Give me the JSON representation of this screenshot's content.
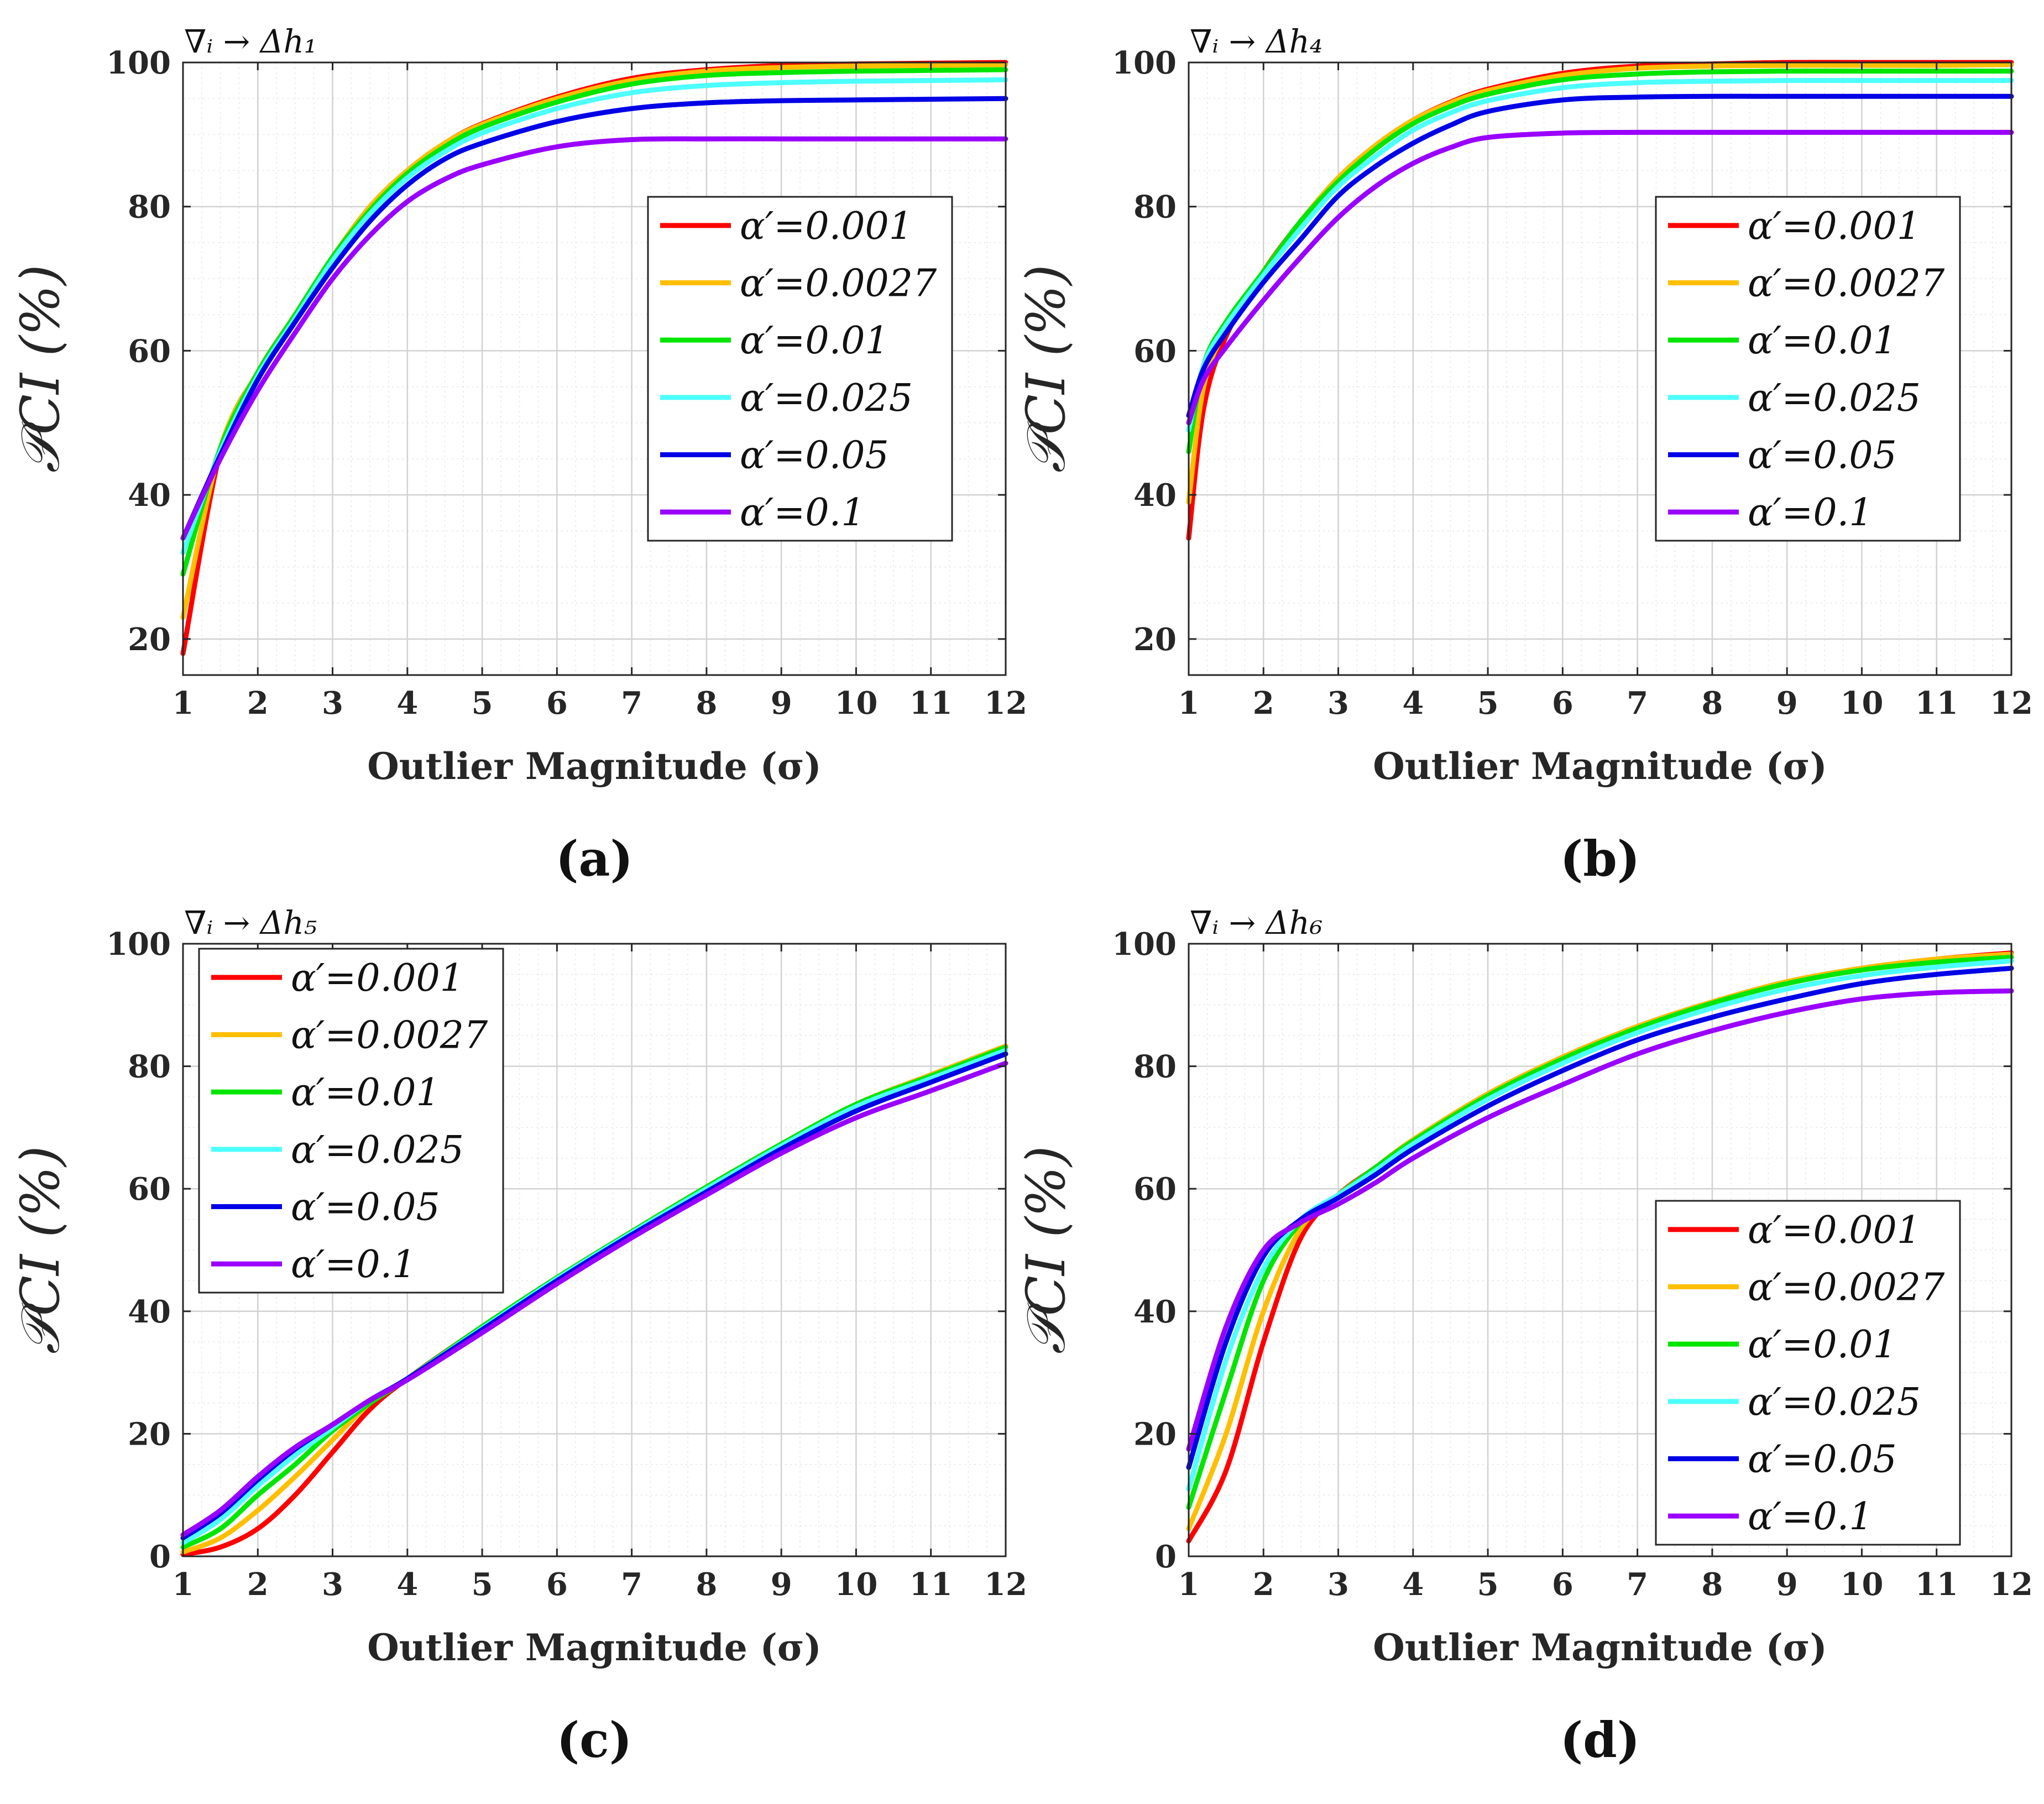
{
  "chart_data": [
    {
      "type": "line",
      "panel": "(a)",
      "title": "∇ᵢ → Δh₁",
      "xlabel": "Outlier Magnitude (σ)",
      "ylabel": "𝒫CI (%)",
      "xlim": [
        1,
        12
      ],
      "ylim": [
        15,
        100
      ],
      "xticks": [
        1,
        2,
        3,
        4,
        5,
        6,
        7,
        8,
        9,
        10,
        11,
        12
      ],
      "yticks": [
        20,
        40,
        60,
        80,
        100
      ],
      "legend_position": "center-right",
      "x": [
        1,
        1.5,
        2,
        2.5,
        3,
        3.5,
        4,
        4.5,
        5,
        6,
        7,
        8,
        9,
        10,
        11,
        12
      ],
      "series": [
        {
          "name": "α′=0.001",
          "color": "#ff0000",
          "values": [
            18,
            46,
            57,
            65,
            73,
            80,
            85,
            88.8,
            91.5,
            95.2,
            97.8,
            99.0,
            99.6,
            99.8,
            99.9,
            100
          ]
        },
        {
          "name": "α′=0.0027",
          "color": "#ffbf00",
          "values": [
            23,
            46.5,
            57,
            65,
            73,
            80,
            85,
            88.8,
            91.4,
            95.0,
            97.5,
            98.8,
            99.3,
            99.5,
            99.6,
            99.7
          ]
        },
        {
          "name": "α′=0.01",
          "color": "#00e600",
          "values": [
            29,
            46.5,
            57,
            65,
            73,
            79.5,
            84.6,
            88.3,
            91.0,
            94.5,
            97.0,
            98.2,
            98.6,
            98.8,
            98.9,
            99.0
          ]
        },
        {
          "name": "α′=0.025",
          "color": "#4dffff",
          "values": [
            32,
            46,
            56.5,
            64.5,
            72.5,
            79,
            84,
            87.6,
            90.2,
            93.6,
            95.8,
            96.8,
            97.2,
            97.4,
            97.5,
            97.6
          ]
        },
        {
          "name": "α′=0.05",
          "color": "#0000e6",
          "values": [
            34,
            45.5,
            56,
            64,
            71.5,
            78,
            83,
            86.6,
            88.8,
            91.8,
            93.6,
            94.4,
            94.7,
            94.8,
            94.9,
            95.0
          ]
        },
        {
          "name": "α′=0.1",
          "color": "#9900ff",
          "values": [
            34,
            45,
            54.5,
            62.5,
            70,
            76,
            80.7,
            83.8,
            85.8,
            88.3,
            89.3,
            89.4,
            89.4,
            89.4,
            89.4,
            89.4
          ]
        }
      ]
    },
    {
      "type": "line",
      "panel": "(b)",
      "title": "∇ᵢ → Δh₄",
      "xlabel": "Outlier Magnitude (σ)",
      "ylabel": "𝒫CI (%)",
      "xlim": [
        1,
        12
      ],
      "ylim": [
        15,
        100
      ],
      "xticks": [
        1,
        2,
        3,
        4,
        5,
        6,
        7,
        8,
        9,
        10,
        11,
        12
      ],
      "yticks": [
        20,
        40,
        60,
        80,
        100
      ],
      "legend_position": "center-right",
      "x": [
        1,
        1.2,
        1.5,
        2,
        2.5,
        3,
        3.5,
        4,
        4.5,
        5,
        6,
        7,
        8,
        9,
        10,
        11,
        12
      ],
      "series": [
        {
          "name": "α′=0.001",
          "color": "#ff0000",
          "values": [
            34,
            52,
            62,
            71,
            78,
            84,
            88.5,
            92,
            94.5,
            96.3,
            98.5,
            99.5,
            99.8,
            100,
            100,
            100,
            100
          ]
        },
        {
          "name": "α′=0.0027",
          "color": "#ffbf00",
          "values": [
            39,
            55,
            63,
            71,
            78,
            84,
            88.5,
            92,
            94.4,
            96.1,
            98.2,
            99.2,
            99.5,
            99.6,
            99.6,
            99.6,
            99.7
          ]
        },
        {
          "name": "α′=0.01",
          "color": "#00e600",
          "values": [
            46,
            58,
            64,
            71,
            78,
            83.5,
            88,
            91.5,
            93.9,
            95.6,
            97.6,
            98.4,
            98.7,
            98.8,
            98.8,
            98.8,
            98.8
          ]
        },
        {
          "name": "α′=0.025",
          "color": "#4dffff",
          "values": [
            49,
            58,
            63.5,
            70.5,
            77,
            82.8,
            87,
            90.6,
            93,
            94.7,
            96.5,
            97.2,
            97.4,
            97.5,
            97.5,
            97.5,
            97.5
          ]
        },
        {
          "name": "α′=0.05",
          "color": "#0000e6",
          "values": [
            51,
            57.5,
            62.5,
            69.5,
            75.5,
            81.5,
            85.6,
            88.8,
            91.3,
            93.2,
            94.8,
            95.2,
            95.3,
            95.3,
            95.3,
            95.3,
            95.3
          ]
        },
        {
          "name": "α′=0.1",
          "color": "#9900ff",
          "values": [
            50,
            56,
            60.5,
            67,
            73,
            78.5,
            82.8,
            86,
            88.2,
            89.6,
            90.2,
            90.3,
            90.3,
            90.3,
            90.3,
            90.3,
            90.3
          ]
        }
      ]
    },
    {
      "type": "line",
      "panel": "(c)",
      "title": "∇ᵢ → Δh₅",
      "xlabel": "Outlier Magnitude (σ)",
      "ylabel": "𝒫CI (%)",
      "xlim": [
        1,
        12
      ],
      "ylim": [
        0,
        100
      ],
      "xticks": [
        1,
        2,
        3,
        4,
        5,
        6,
        7,
        8,
        9,
        10,
        11,
        12
      ],
      "yticks": [
        0,
        20,
        40,
        60,
        80,
        100
      ],
      "legend_position": "top-left",
      "x": [
        1,
        1.5,
        2,
        2.5,
        3,
        3.5,
        4,
        5,
        6,
        7,
        8,
        9,
        10,
        11,
        12
      ],
      "series": [
        {
          "name": "α′=0.001",
          "color": "#ff0000",
          "values": [
            0.3,
            1.5,
            4.5,
            10,
            17,
            24,
            29,
            37.5,
            45.5,
            53,
            60.3,
            67.3,
            73.8,
            78.6,
            83.3
          ]
        },
        {
          "name": "α′=0.0027",
          "color": "#ffbf00",
          "values": [
            0.7,
            3,
            7.5,
            13,
            19,
            25,
            29,
            37.5,
            45.5,
            53,
            60.3,
            67.3,
            73.8,
            78.6,
            83.3
          ]
        },
        {
          "name": "α′=0.01",
          "color": "#00e600",
          "values": [
            1.5,
            4.5,
            10,
            15,
            20.5,
            25,
            29,
            37.5,
            45.5,
            53,
            60.3,
            67.3,
            73.8,
            78.4,
            83.1
          ]
        },
        {
          "name": "α′=0.025",
          "color": "#4dffff",
          "values": [
            2.2,
            6,
            11.5,
            16.5,
            21,
            25.5,
            29,
            37.2,
            45.3,
            52.8,
            60,
            67,
            73.4,
            78,
            82.6
          ]
        },
        {
          "name": "α′=0.05",
          "color": "#0000e6",
          "values": [
            3,
            7,
            12.5,
            17.5,
            21.5,
            25.5,
            29,
            37,
            45,
            52.5,
            59.5,
            66.5,
            72.7,
            77.4,
            82
          ]
        },
        {
          "name": "α′=0.1",
          "color": "#9900ff",
          "values": [
            3.5,
            7.5,
            13,
            17.8,
            21.5,
            25.5,
            28.8,
            36.5,
            44.5,
            52,
            59,
            65.8,
            71.6,
            76,
            80.5
          ]
        }
      ]
    },
    {
      "type": "line",
      "panel": "(d)",
      "title": "∇ᵢ → Δh₆",
      "xlabel": "Outlier Magnitude (σ)",
      "ylabel": "𝒫CI (%)",
      "xlim": [
        1,
        12
      ],
      "ylim": [
        0,
        100
      ],
      "xticks": [
        1,
        2,
        3,
        4,
        5,
        6,
        7,
        8,
        9,
        10,
        11,
        12
      ],
      "yticks": [
        0,
        20,
        40,
        60,
        80,
        100
      ],
      "legend_position": "bottom-right",
      "x": [
        1,
        1.5,
        2,
        2.5,
        3,
        3.5,
        4,
        5,
        6,
        7,
        8,
        9,
        10,
        11,
        12
      ],
      "series": [
        {
          "name": "α′=0.001",
          "color": "#ff0000",
          "values": [
            2.5,
            14,
            35,
            52,
            59,
            63.5,
            68,
            75.5,
            81.5,
            86.5,
            90.5,
            93.8,
            96,
            97.5,
            98.5
          ]
        },
        {
          "name": "α′=0.0027",
          "color": "#ffbf00",
          "values": [
            4.5,
            20,
            40,
            53.5,
            59,
            63.5,
            68,
            75.5,
            81.5,
            86.5,
            90.5,
            93.8,
            96,
            97.5,
            98.3
          ]
        },
        {
          "name": "α′=0.01",
          "color": "#00e600",
          "values": [
            8,
            27,
            45,
            54.5,
            59,
            63.5,
            67.8,
            75.2,
            81.2,
            86.2,
            90.3,
            93.5,
            95.7,
            97,
            97.8
          ]
        },
        {
          "name": "α′=0.025",
          "color": "#4dffff",
          "values": [
            11,
            32,
            47,
            55,
            59,
            63,
            67.3,
            74.6,
            80.5,
            85.5,
            89.5,
            92.6,
            94.8,
            96.2,
            97.2
          ]
        },
        {
          "name": "α′=0.05",
          "color": "#0000e6",
          "values": [
            14.5,
            35,
            49,
            55,
            58.5,
            62.3,
            66.5,
            73.5,
            79.3,
            84.3,
            88,
            91,
            93.5,
            95,
            96
          ]
        },
        {
          "name": "α′=0.1",
          "color": "#9900ff",
          "values": [
            17.5,
            37.5,
            50,
            54.5,
            57.5,
            61,
            65,
            71.6,
            77,
            82,
            85.8,
            88.8,
            91,
            92,
            92.3
          ]
        }
      ]
    }
  ]
}
